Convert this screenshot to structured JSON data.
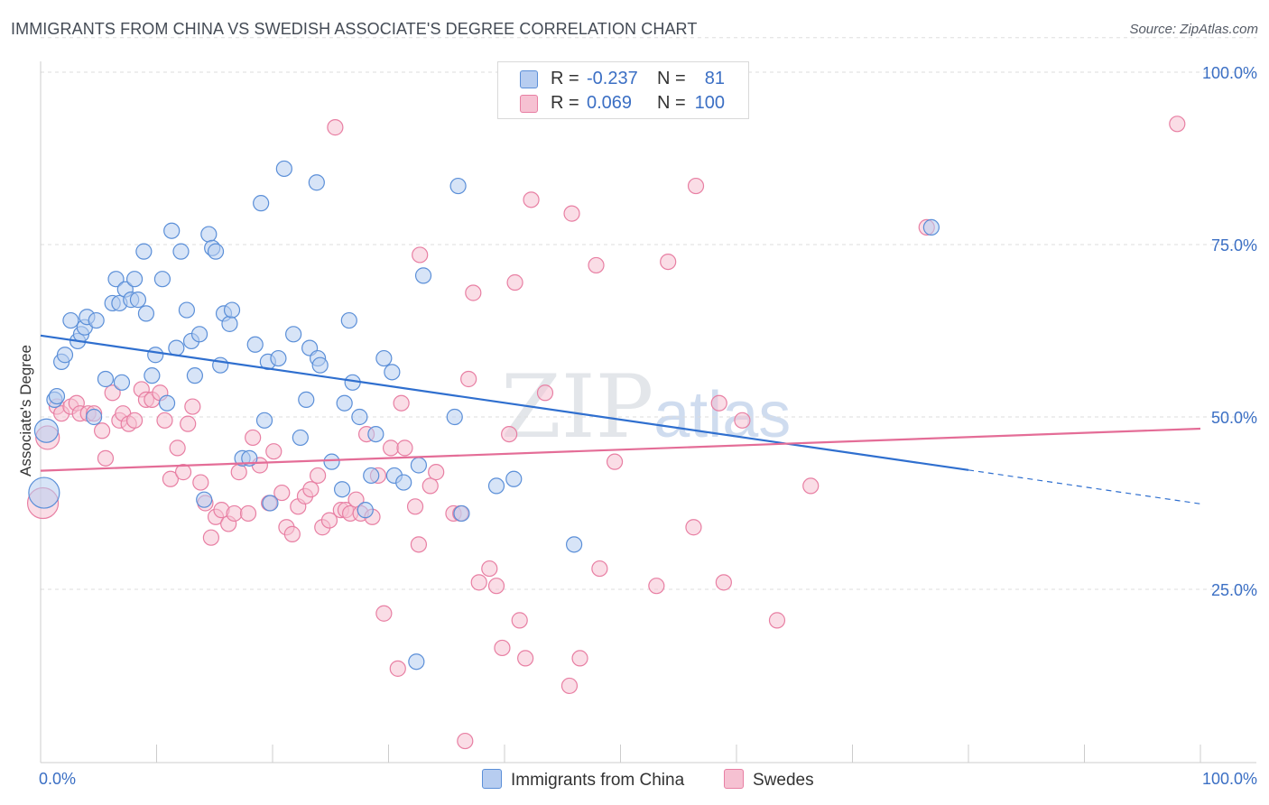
{
  "title": "IMMIGRANTS FROM CHINA VS SWEDISH ASSOCIATE'S DEGREE CORRELATION CHART",
  "source": "Source: ZipAtlas.com",
  "watermark": {
    "zip": "ZIP",
    "atlas": "atlas"
  },
  "legend": {
    "rows": [
      {
        "r_label": "R =",
        "r_value": "-0.237",
        "n_label": "N =",
        "n_value": "81"
      },
      {
        "r_label": "R =",
        "r_value": "0.069",
        "n_label": "N =",
        "n_value": "100"
      }
    ]
  },
  "bottom_legend": [
    "Immigrants from China",
    "Swedes"
  ],
  "colors": {
    "china_fill": "#b7cdf0",
    "china_stroke": "#5b8fd8",
    "china_line": "#2f6fcf",
    "swedes_fill": "#f6c1d2",
    "swedes_stroke": "#e87fa3",
    "swedes_line": "#e46d97",
    "tick_text": "#3b6fc4",
    "grid": "#dddddd"
  },
  "chart_data": {
    "type": "scatter",
    "title": "IMMIGRANTS FROM CHINA VS SWEDISH ASSOCIATE'S DEGREE CORRELATION CHART",
    "xlabel": "",
    "ylabel": "Associate's Degree",
    "xlim": [
      0,
      100
    ],
    "ylim": [
      0,
      105
    ],
    "x_ticks_labeled": [
      "0.0%",
      "100.0%"
    ],
    "y_ticks": [
      {
        "value": 25,
        "label": "25.0%"
      },
      {
        "value": 50,
        "label": "50.0%"
      },
      {
        "value": 75,
        "label": "75.0%"
      },
      {
        "value": 100,
        "label": "100.0%"
      }
    ],
    "grid": "horizontal dashed",
    "series": [
      {
        "name": "Immigrants from China",
        "r": -0.237,
        "n": 81,
        "trend": {
          "x0": 0,
          "y0": 61.8,
          "x1": 80,
          "y1": 42.3,
          "dashed_to_x": 100,
          "dashed_to_y": 37.4
        },
        "points": [
          [
            0.3,
            39,
            3
          ],
          [
            0.5,
            48,
            2
          ],
          [
            1.2,
            52.5,
            1
          ],
          [
            1.4,
            53,
            1
          ],
          [
            1.8,
            58,
            1
          ],
          [
            2.1,
            59,
            1
          ],
          [
            2.6,
            64,
            1
          ],
          [
            3.2,
            61,
            1
          ],
          [
            3.5,
            62,
            1
          ],
          [
            3.8,
            63,
            1
          ],
          [
            4,
            64.5,
            1
          ],
          [
            4.8,
            64,
            1
          ],
          [
            4.6,
            50,
            1
          ],
          [
            5.6,
            55.5,
            1
          ],
          [
            6.2,
            66.5,
            1
          ],
          [
            6.8,
            66.5,
            1
          ],
          [
            6.5,
            70,
            1
          ],
          [
            7,
            55,
            1
          ],
          [
            7.3,
            68.5,
            1
          ],
          [
            7.8,
            67,
            1
          ],
          [
            8.1,
            70,
            1
          ],
          [
            8.4,
            67,
            1
          ],
          [
            8.9,
            74,
            1
          ],
          [
            9.1,
            65,
            1
          ],
          [
            9.6,
            56,
            1
          ],
          [
            9.9,
            59,
            1
          ],
          [
            10.5,
            70,
            1
          ],
          [
            10.9,
            52,
            1
          ],
          [
            11.3,
            77,
            1
          ],
          [
            11.7,
            60,
            1
          ],
          [
            12.1,
            74,
            1
          ],
          [
            12.6,
            65.5,
            1
          ],
          [
            13,
            61,
            1
          ],
          [
            13.3,
            56,
            1
          ],
          [
            13.7,
            62,
            1
          ],
          [
            14.1,
            38,
            1
          ],
          [
            14.5,
            76.5,
            1
          ],
          [
            14.8,
            74.5,
            1
          ],
          [
            15.1,
            74,
            1
          ],
          [
            15.5,
            57.5,
            1
          ],
          [
            15.8,
            65,
            1
          ],
          [
            16.3,
            63.5,
            1
          ],
          [
            16.5,
            65.5,
            1
          ],
          [
            17.4,
            44,
            1
          ],
          [
            18,
            44,
            1
          ],
          [
            18.5,
            60.5,
            1
          ],
          [
            19,
            81,
            1
          ],
          [
            19.3,
            49.5,
            1
          ],
          [
            19.6,
            58,
            1
          ],
          [
            19.8,
            37.5,
            1
          ],
          [
            20.5,
            58.5,
            1
          ],
          [
            21,
            86,
            1
          ],
          [
            21.8,
            62,
            1
          ],
          [
            22.4,
            47,
            1
          ],
          [
            22.9,
            52.5,
            1
          ],
          [
            23.2,
            60,
            1
          ],
          [
            23.8,
            84,
            1
          ],
          [
            23.9,
            58.5,
            1
          ],
          [
            24.1,
            57.5,
            1
          ],
          [
            25.1,
            43.5,
            1
          ],
          [
            26,
            39.5,
            1
          ],
          [
            26.2,
            52,
            1
          ],
          [
            26.6,
            64,
            1
          ],
          [
            26.9,
            55,
            1
          ],
          [
            27.5,
            50,
            1
          ],
          [
            28,
            36.5,
            1
          ],
          [
            28.5,
            41.5,
            1
          ],
          [
            28.9,
            47.5,
            1
          ],
          [
            29.6,
            58.5,
            1
          ],
          [
            30.3,
            56.5,
            1
          ],
          [
            30.5,
            41.5,
            1
          ],
          [
            31.3,
            40.5,
            1
          ],
          [
            32.4,
            14.5,
            1
          ],
          [
            32.6,
            43,
            1
          ],
          [
            33,
            70.5,
            1
          ],
          [
            35.7,
            50,
            1
          ],
          [
            36,
            83.5,
            1
          ],
          [
            36.3,
            36,
            1
          ],
          [
            39.3,
            40,
            1
          ],
          [
            40.8,
            41,
            1
          ],
          [
            46,
            31.5,
            1
          ],
          [
            76.8,
            77.5,
            1
          ]
        ]
      },
      {
        "name": "Swedes",
        "r": 0.069,
        "n": 100,
        "trend": {
          "x0": 0,
          "y0": 42.2,
          "x1": 100,
          "y1": 48.3
        },
        "points": [
          [
            0.2,
            37.5,
            3
          ],
          [
            0.6,
            47,
            2
          ],
          [
            1.4,
            51.5,
            1
          ],
          [
            1.8,
            50.5,
            1
          ],
          [
            2.6,
            51.5,
            1
          ],
          [
            3.1,
            52,
            1
          ],
          [
            3.4,
            50.5,
            1
          ],
          [
            4.1,
            50.5,
            1
          ],
          [
            4.6,
            50.5,
            1
          ],
          [
            5.3,
            48,
            1
          ],
          [
            5.6,
            44,
            1
          ],
          [
            6.2,
            53.5,
            1
          ],
          [
            6.8,
            49.5,
            1
          ],
          [
            7.1,
            50.5,
            1
          ],
          [
            7.6,
            49,
            1
          ],
          [
            8.1,
            49.5,
            1
          ],
          [
            8.7,
            54,
            1
          ],
          [
            9.1,
            52.5,
            1
          ],
          [
            9.6,
            52.5,
            1
          ],
          [
            10.3,
            53.5,
            1
          ],
          [
            10.7,
            49.5,
            1
          ],
          [
            11.2,
            41,
            1
          ],
          [
            11.8,
            45.5,
            1
          ],
          [
            12.3,
            42,
            1
          ],
          [
            12.7,
            49,
            1
          ],
          [
            13.1,
            51.5,
            1
          ],
          [
            13.8,
            40.5,
            1
          ],
          [
            14.2,
            37.5,
            1
          ],
          [
            14.7,
            32.5,
            1
          ],
          [
            15.1,
            35.5,
            1
          ],
          [
            15.6,
            36.5,
            1
          ],
          [
            16.2,
            34.5,
            1
          ],
          [
            16.7,
            36,
            1
          ],
          [
            17.1,
            42,
            1
          ],
          [
            17.9,
            36,
            1
          ],
          [
            18.3,
            47,
            1
          ],
          [
            18.9,
            43,
            1
          ],
          [
            19.7,
            37.5,
            1
          ],
          [
            20.1,
            45,
            1
          ],
          [
            20.8,
            39,
            1
          ],
          [
            21.2,
            34,
            1
          ],
          [
            21.7,
            33,
            1
          ],
          [
            22.2,
            37,
            1
          ],
          [
            22.8,
            38.5,
            1
          ],
          [
            23.3,
            39.5,
            1
          ],
          [
            23.9,
            41.5,
            1
          ],
          [
            24.3,
            34,
            1
          ],
          [
            24.9,
            35,
            1
          ],
          [
            25.4,
            92,
            1
          ],
          [
            25.9,
            36.5,
            1
          ],
          [
            26.3,
            36.5,
            1
          ],
          [
            26.7,
            36,
            1
          ],
          [
            27.2,
            38,
            1
          ],
          [
            27.6,
            36,
            1
          ],
          [
            28.1,
            47.5,
            1
          ],
          [
            28.6,
            35.5,
            1
          ],
          [
            29.1,
            41.5,
            1
          ],
          [
            29.6,
            21.5,
            1
          ],
          [
            30.2,
            45.5,
            1
          ],
          [
            30.8,
            13.5,
            1
          ],
          [
            31.1,
            52,
            1
          ],
          [
            31.4,
            45.5,
            1
          ],
          [
            32.3,
            37,
            1
          ],
          [
            32.6,
            31.5,
            1
          ],
          [
            32.7,
            73.5,
            1
          ],
          [
            33.6,
            40,
            1
          ],
          [
            34.1,
            42,
            1
          ],
          [
            35.6,
            36,
            1
          ],
          [
            36.2,
            36,
            1
          ],
          [
            36.9,
            55.5,
            1
          ],
          [
            37.3,
            68,
            1
          ],
          [
            37.8,
            26,
            1
          ],
          [
            38.7,
            28,
            1
          ],
          [
            39.3,
            25.5,
            1
          ],
          [
            39.8,
            16.5,
            1
          ],
          [
            40.4,
            47.5,
            1
          ],
          [
            40.9,
            69.5,
            1
          ],
          [
            41.3,
            20.5,
            1
          ],
          [
            41.8,
            15,
            1
          ],
          [
            42.3,
            81.5,
            1
          ],
          [
            43.5,
            53.5,
            1
          ],
          [
            45.6,
            11,
            1
          ],
          [
            45.8,
            79.5,
            1
          ],
          [
            46.5,
            15,
            1
          ],
          [
            47.9,
            72,
            1
          ],
          [
            48.2,
            28,
            1
          ],
          [
            49.5,
            43.5,
            1
          ],
          [
            53.1,
            25.5,
            1
          ],
          [
            54.1,
            72.5,
            1
          ],
          [
            56.3,
            34,
            1
          ],
          [
            56.5,
            83.5,
            1
          ],
          [
            58.5,
            52,
            1
          ],
          [
            58.9,
            26,
            1
          ],
          [
            60.5,
            49.5,
            1
          ],
          [
            63.5,
            20.5,
            1
          ],
          [
            66.4,
            40,
            1
          ],
          [
            76.4,
            77.5,
            1
          ],
          [
            98,
            92.5,
            1
          ],
          [
            36.6,
            3,
            1
          ]
        ]
      }
    ]
  }
}
